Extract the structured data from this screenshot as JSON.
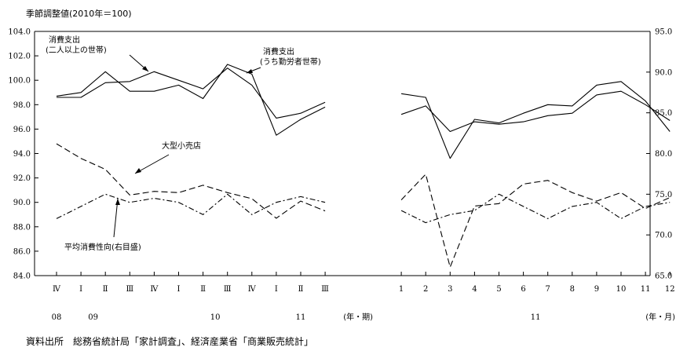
{
  "chart_data": {
    "type": "line",
    "title": "季節調整値(2010年＝100)",
    "source": "資料出所　総務省統計局「家計調査」、経済産業省「商業販売統計」",
    "left_axis": {
      "ylim": [
        84.0,
        104.0
      ],
      "ticks": [
        "84.0",
        "86.0",
        "88.0",
        "90.0",
        "92.0",
        "94.0",
        "96.0",
        "98.0",
        "100.0",
        "102.0",
        "104.0"
      ]
    },
    "right_axis": {
      "ylim": [
        65.0,
        95.0
      ],
      "ticks": [
        "65.0",
        "70.0",
        "75.0",
        "80.0",
        "85.0",
        "90.0",
        "95.0"
      ]
    },
    "panels": [
      {
        "id": "quarterly",
        "categories": [
          "Ⅳ",
          "Ⅰ",
          "Ⅱ",
          "Ⅲ",
          "Ⅳ",
          "Ⅰ",
          "Ⅱ",
          "Ⅲ",
          "Ⅳ",
          "Ⅰ",
          "Ⅱ",
          "Ⅲ"
        ],
        "year_labels": [
          {
            "label": "08",
            "index": 0
          },
          {
            "label": "09",
            "index": 1.5
          },
          {
            "label": "10",
            "index": 6.5
          },
          {
            "label": "11",
            "index": 10
          }
        ],
        "unit_label": "(年・期)",
        "series": [
          {
            "name": "消費支出(二人以上の世帯)",
            "axis": "left",
            "style": "solid",
            "values": [
              98.6,
              98.6,
              99.8,
              99.9,
              100.7,
              100.0,
              99.3,
              101.0,
              99.6,
              96.9,
              97.3,
              98.2
            ]
          },
          {
            "name": "消費支出(うち勤労者世帯)",
            "axis": "left",
            "style": "solid",
            "values": [
              98.7,
              99.0,
              100.7,
              99.1,
              99.1,
              99.6,
              98.5,
              101.3,
              100.5,
              95.5,
              96.8,
              97.8
            ]
          },
          {
            "name": "大型小売店",
            "axis": "left",
            "style": "dashed",
            "values": [
              94.8,
              93.6,
              92.7,
              90.6,
              90.9,
              90.8,
              91.4,
              90.8,
              90.3,
              88.7,
              90.1,
              89.3
            ]
          },
          {
            "name": "平均消費性向(右目盛)",
            "axis": "right",
            "style": "dashdot",
            "values": [
              72.0,
              73.5,
              75.0,
              74.0,
              74.5,
              74.0,
              72.5,
              75.0,
              72.5,
              74.0,
              74.7,
              74.0
            ]
          }
        ]
      },
      {
        "id": "monthly",
        "categories": [
          "1",
          "2",
          "3",
          "4",
          "5",
          "6",
          "7",
          "8",
          "9",
          "10",
          "11",
          "12"
        ],
        "year_labels": [
          {
            "label": "11",
            "index": 5.5
          }
        ],
        "unit_label": "(年・月)",
        "series": [
          {
            "name": "消費支出(二人以上の世帯)",
            "axis": "left",
            "style": "solid",
            "values": [
              97.2,
              97.9,
              95.8,
              96.6,
              96.4,
              96.6,
              97.1,
              97.3,
              98.8,
              99.1,
              98.0,
              96.7
            ]
          },
          {
            "name": "消費支出(うち勤労者世帯)",
            "axis": "left",
            "style": "solid",
            "values": [
              98.9,
              98.6,
              93.6,
              96.8,
              96.5,
              97.3,
              98.0,
              97.9,
              99.6,
              99.9,
              98.3,
              95.8
            ]
          },
          {
            "name": "大型小売店",
            "axis": "left",
            "style": "dashed",
            "values": [
              90.2,
              92.3,
              84.7,
              89.7,
              89.9,
              91.5,
              91.8,
              90.8,
              90.1,
              90.8,
              89.5,
              90.4
            ]
          },
          {
            "name": "平均消費性向(右目盛)",
            "axis": "right",
            "style": "dashdot",
            "values": [
              73.0,
              71.5,
              72.5,
              73.0,
              75.0,
              73.5,
              72.0,
              73.5,
              74.0,
              72.0,
              73.5,
              74.0
            ]
          }
        ]
      }
    ],
    "annotations": [
      {
        "id": "ann-consumption-all",
        "lines": [
          "消費支出",
          "(二人以上の世帯)"
        ]
      },
      {
        "id": "ann-consumption-workers",
        "lines": [
          "消費支出",
          "(うち勤労者世帯)"
        ]
      },
      {
        "id": "ann-large-retail",
        "lines": [
          "大型小売店"
        ]
      },
      {
        "id": "ann-propensity",
        "lines": [
          "平均消費性向(右目盛)"
        ]
      }
    ],
    "grid": false,
    "legend": "none"
  }
}
